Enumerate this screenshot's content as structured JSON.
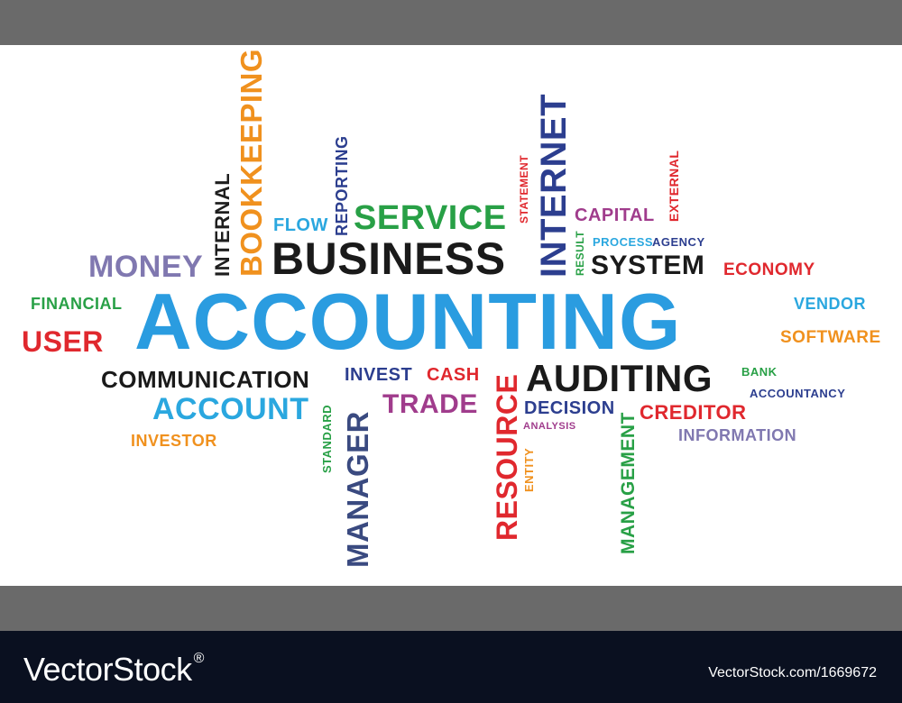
{
  "cloud": {
    "accounting": "ACCOUNTING",
    "business": "BUSINESS",
    "service": "SERVICE",
    "internet": "INTERNET",
    "bookkeeping": "BOOKKEEPING",
    "internal": "INTERNAL",
    "money": "MONEY",
    "flow": "FLOW",
    "reporting": "REPORTING",
    "statement": "STATEMENT",
    "capital": "CAPITAL",
    "external": "EXTERNAL",
    "result": "RESULT",
    "process": "PROCESS",
    "agency": "AGENCY",
    "system": "SYSTEM",
    "economy": "ECONOMY",
    "financial": "FINANCIAL",
    "user": "USER",
    "vendor": "VENDOR",
    "software": "SOFTWARE",
    "communication": "COMMUNICATION",
    "invest": "INVEST",
    "cash": "CASH",
    "auditing": "AUDITING",
    "bank": "BANK",
    "accountancy": "ACCOUNTANCY",
    "account": "ACCOUNT",
    "trade": "TRADE",
    "decision": "DECISION",
    "creditor": "CREDITOR",
    "analysis": "ANALYSIS",
    "information": "INFORMATION",
    "investor": "INVESTOR",
    "standard": "STANDARD",
    "manager": "MANAGER",
    "resource": "RESOURCE",
    "entity": "ENTITY",
    "management": "MANAGEMENT"
  },
  "footer": {
    "brand": "VectorStock",
    "brand_mark": "®",
    "url": "VectorStock.com/1669672"
  }
}
